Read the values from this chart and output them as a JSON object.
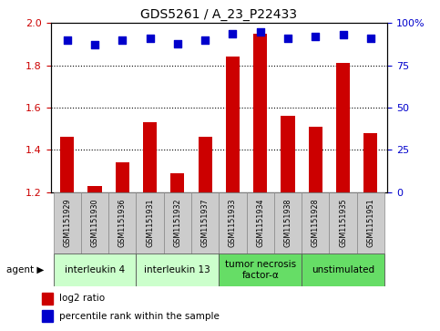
{
  "title": "GDS5261 / A_23_P22433",
  "samples": [
    "GSM1151929",
    "GSM1151930",
    "GSM1151936",
    "GSM1151931",
    "GSM1151932",
    "GSM1151937",
    "GSM1151933",
    "GSM1151934",
    "GSM1151938",
    "GSM1151928",
    "GSM1151935",
    "GSM1151951"
  ],
  "log2_ratio": [
    1.46,
    1.23,
    1.34,
    1.53,
    1.29,
    1.46,
    1.84,
    1.95,
    1.56,
    1.51,
    1.81,
    1.48
  ],
  "percentile_rank": [
    90,
    87,
    90,
    91,
    88,
    90,
    94,
    95,
    91,
    92,
    93,
    91
  ],
  "ylim": [
    1.2,
    2.0
  ],
  "yticks_left": [
    1.2,
    1.4,
    1.6,
    1.8,
    2.0
  ],
  "yticks_right": [
    0,
    25,
    50,
    75,
    100
  ],
  "bar_color": "#cc0000",
  "dot_color": "#0000cc",
  "grid_color": "#000000",
  "agent_groups": [
    {
      "label": "interleukin 4",
      "start": 0,
      "end": 3,
      "color": "#ccffcc"
    },
    {
      "label": "interleukin 13",
      "start": 3,
      "end": 6,
      "color": "#ccffcc"
    },
    {
      "label": "tumor necrosis\nfactor-α",
      "start": 6,
      "end": 9,
      "color": "#66dd66"
    },
    {
      "label": "unstimulated",
      "start": 9,
      "end": 12,
      "color": "#66dd66"
    }
  ],
  "legend_red_label": "log2 ratio",
  "legend_blue_label": "percentile rank within the sample",
  "bar_width": 0.5,
  "dot_size": 35,
  "bg_color": "#ffffff",
  "sample_box_color": "#cccccc"
}
